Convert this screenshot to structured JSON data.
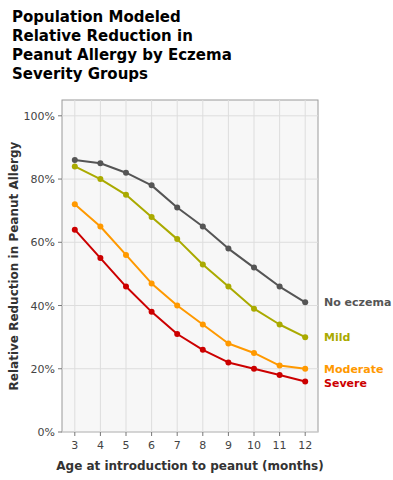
{
  "chart_data": {
    "type": "line",
    "title": "Population Modeled\nRelative Reduction in\nPeanut Allergy by Eczema\nSeverity Groups",
    "xlabel": "Age at introduction to peanut (months)",
    "ylabel": "Relative Reduction in Peanut Allergy",
    "x": [
      3,
      4,
      5,
      6,
      7,
      8,
      9,
      10,
      11,
      12
    ],
    "series": [
      {
        "name": "No eczema",
        "color": "#555555",
        "values": [
          0.86,
          0.85,
          0.82,
          0.78,
          0.71,
          0.65,
          0.58,
          0.52,
          0.46,
          0.41
        ]
      },
      {
        "name": "Mild",
        "color": "#aaaa00",
        "values": [
          0.84,
          0.8,
          0.75,
          0.68,
          0.61,
          0.53,
          0.46,
          0.39,
          0.34,
          0.3
        ]
      },
      {
        "name": "Moderate",
        "color": "#ff9900",
        "values": [
          0.72,
          0.65,
          0.56,
          0.47,
          0.4,
          0.34,
          0.28,
          0.25,
          0.21,
          0.2
        ]
      },
      {
        "name": "Severe",
        "color": "#cc0000",
        "values": [
          0.64,
          0.55,
          0.46,
          0.38,
          0.31,
          0.26,
          0.22,
          0.2,
          0.18,
          0.16
        ]
      }
    ],
    "xlim": [
      2.5,
      12.5
    ],
    "xticks": [
      3,
      4,
      5,
      6,
      7,
      8,
      9,
      10,
      11,
      12
    ],
    "ylim": [
      0.0,
      1.05
    ],
    "yticks": [
      {
        "value": 0.0,
        "label": "0%"
      },
      {
        "value": 0.2,
        "label": "20%"
      },
      {
        "value": 0.4,
        "label": "40%"
      },
      {
        "value": 0.6,
        "label": "60%"
      },
      {
        "value": 0.8,
        "label": "80%"
      },
      {
        "value": 1.0,
        "label": "100%"
      }
    ],
    "grid": true,
    "marker": "circle"
  }
}
